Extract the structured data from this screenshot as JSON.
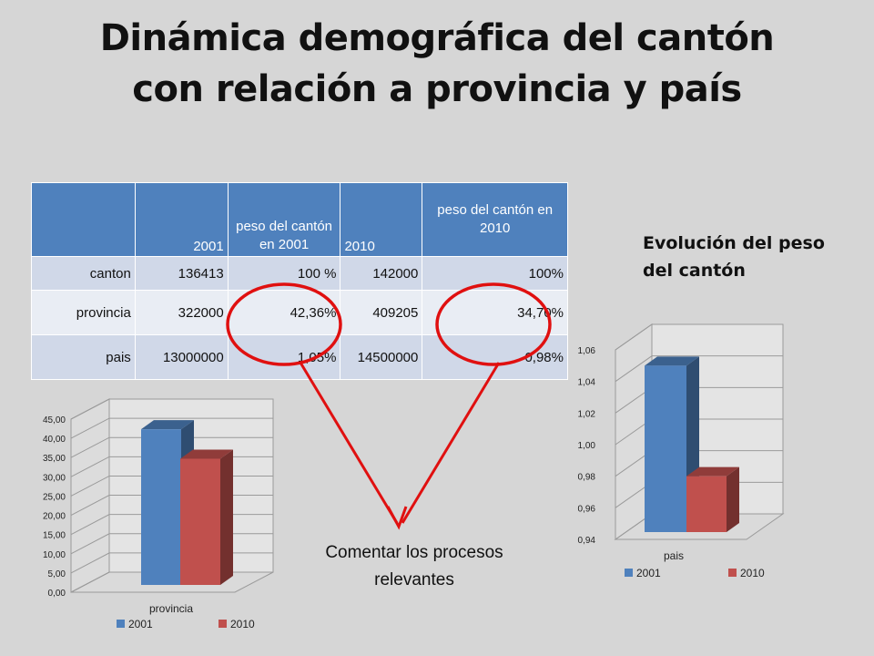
{
  "title_line1": "Dinámica demográfica del cantón",
  "title_line2": "con relación a provincia y país",
  "table": {
    "headers": [
      "",
      "2001",
      "peso del cantón en 2001",
      "2010",
      "peso del cantón en 2010"
    ],
    "rows": [
      [
        "canton",
        "136413",
        "100 %",
        "142000",
        "100%"
      ],
      [
        "provincia",
        "322000",
        "42,36%",
        "409205",
        "34,70%"
      ],
      [
        "pais",
        "13000000",
        "1,05%",
        "14500000",
        "0,98%"
      ]
    ]
  },
  "side_title": "Evolución del peso del cantón",
  "comment": "Comentar los procesos relevantes",
  "colors": {
    "s2001": "#4f81bd",
    "s2010": "#c0504d",
    "header": "#4f81bd",
    "annotation": "#e01010"
  },
  "chart_data": [
    {
      "type": "bar",
      "categories": [
        "provincia"
      ],
      "series": [
        {
          "name": "2001",
          "values": [
            42.36
          ]
        },
        {
          "name": "2010",
          "values": [
            34.7
          ]
        }
      ],
      "yticks": [
        "0,00",
        "5,00",
        "10,00",
        "15,00",
        "20,00",
        "25,00",
        "30,00",
        "35,00",
        "40,00",
        "45,00"
      ],
      "ylim": [
        0,
        45
      ],
      "legend": "bottom"
    },
    {
      "type": "bar",
      "categories": [
        "pais"
      ],
      "series": [
        {
          "name": "2001",
          "values": [
            1.05
          ]
        },
        {
          "name": "2010",
          "values": [
            0.98
          ]
        }
      ],
      "yticks": [
        "0,94",
        "0,96",
        "0,98",
        "1,00",
        "1,02",
        "1,04",
        "1,06"
      ],
      "ylim": [
        0.94,
        1.06
      ],
      "legend": "bottom"
    }
  ]
}
